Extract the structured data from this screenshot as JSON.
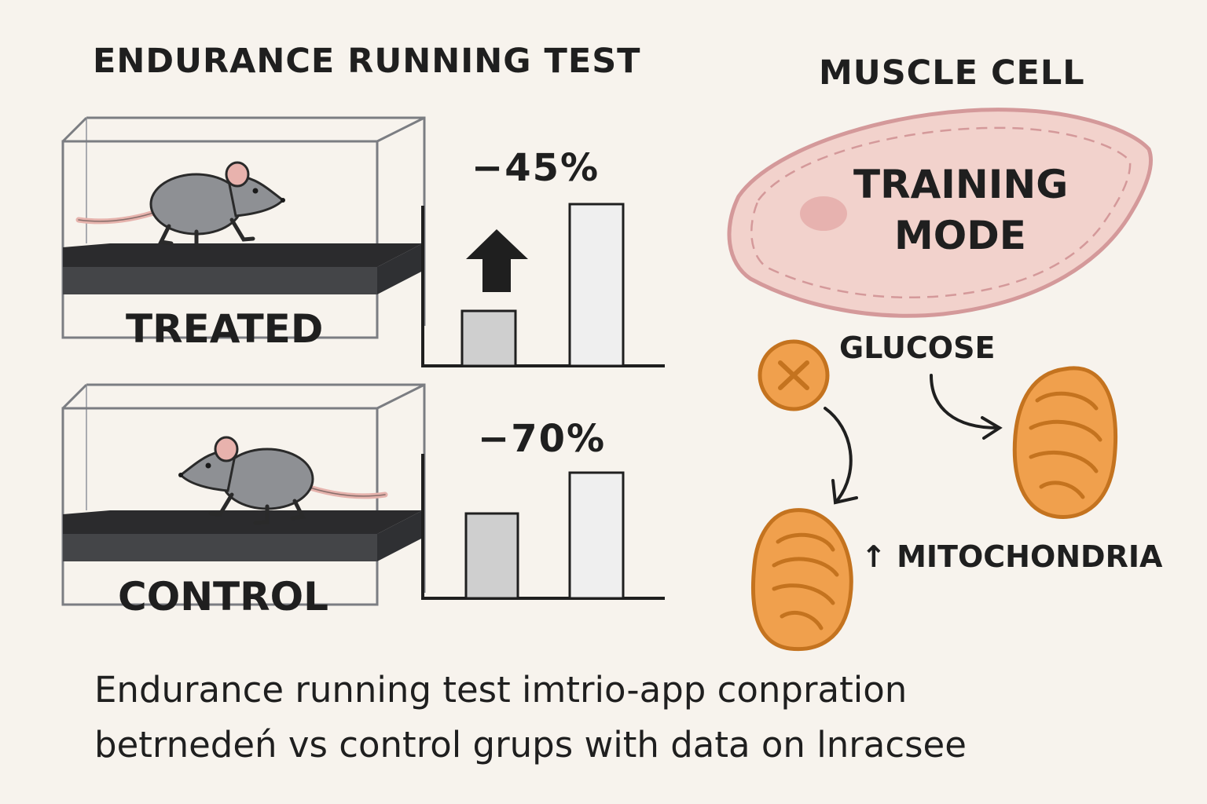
{
  "left_title": "ENDURANCE RUNNING TEST",
  "right_title": "MUSCLE CELL",
  "cell_label_line1": "TRAINING",
  "cell_label_line2": "MODE",
  "groups": [
    {
      "label": "TREATED",
      "change": "−45%"
    },
    {
      "label": "CONTROL",
      "change": "−70%"
    }
  ],
  "glucose_label": "GLUCOSE",
  "mitochondria_label": "↑ MITOCHONDRIA",
  "caption_line1": "Endurance running test imtrio-app conpration",
  "caption_line2": "betrnedeń vs control grups  with data on lnracsee",
  "colors": {
    "background": "#f7f3ed",
    "rat": "#8e9094",
    "treadmill": "#2f3033",
    "bar_short": "#cfcfcf",
    "bar_tall": "#efefef",
    "cell_fill": "#f2d2cc",
    "cell_border": "#d4999a",
    "mito_fill": "#f0a04d",
    "mito_border": "#c4731f"
  },
  "icons": [
    "rat-icon",
    "treadmill-icon",
    "up-arrow-icon",
    "glucose-icon",
    "mitochondrion-icon",
    "muscle-cell-icon"
  ]
}
